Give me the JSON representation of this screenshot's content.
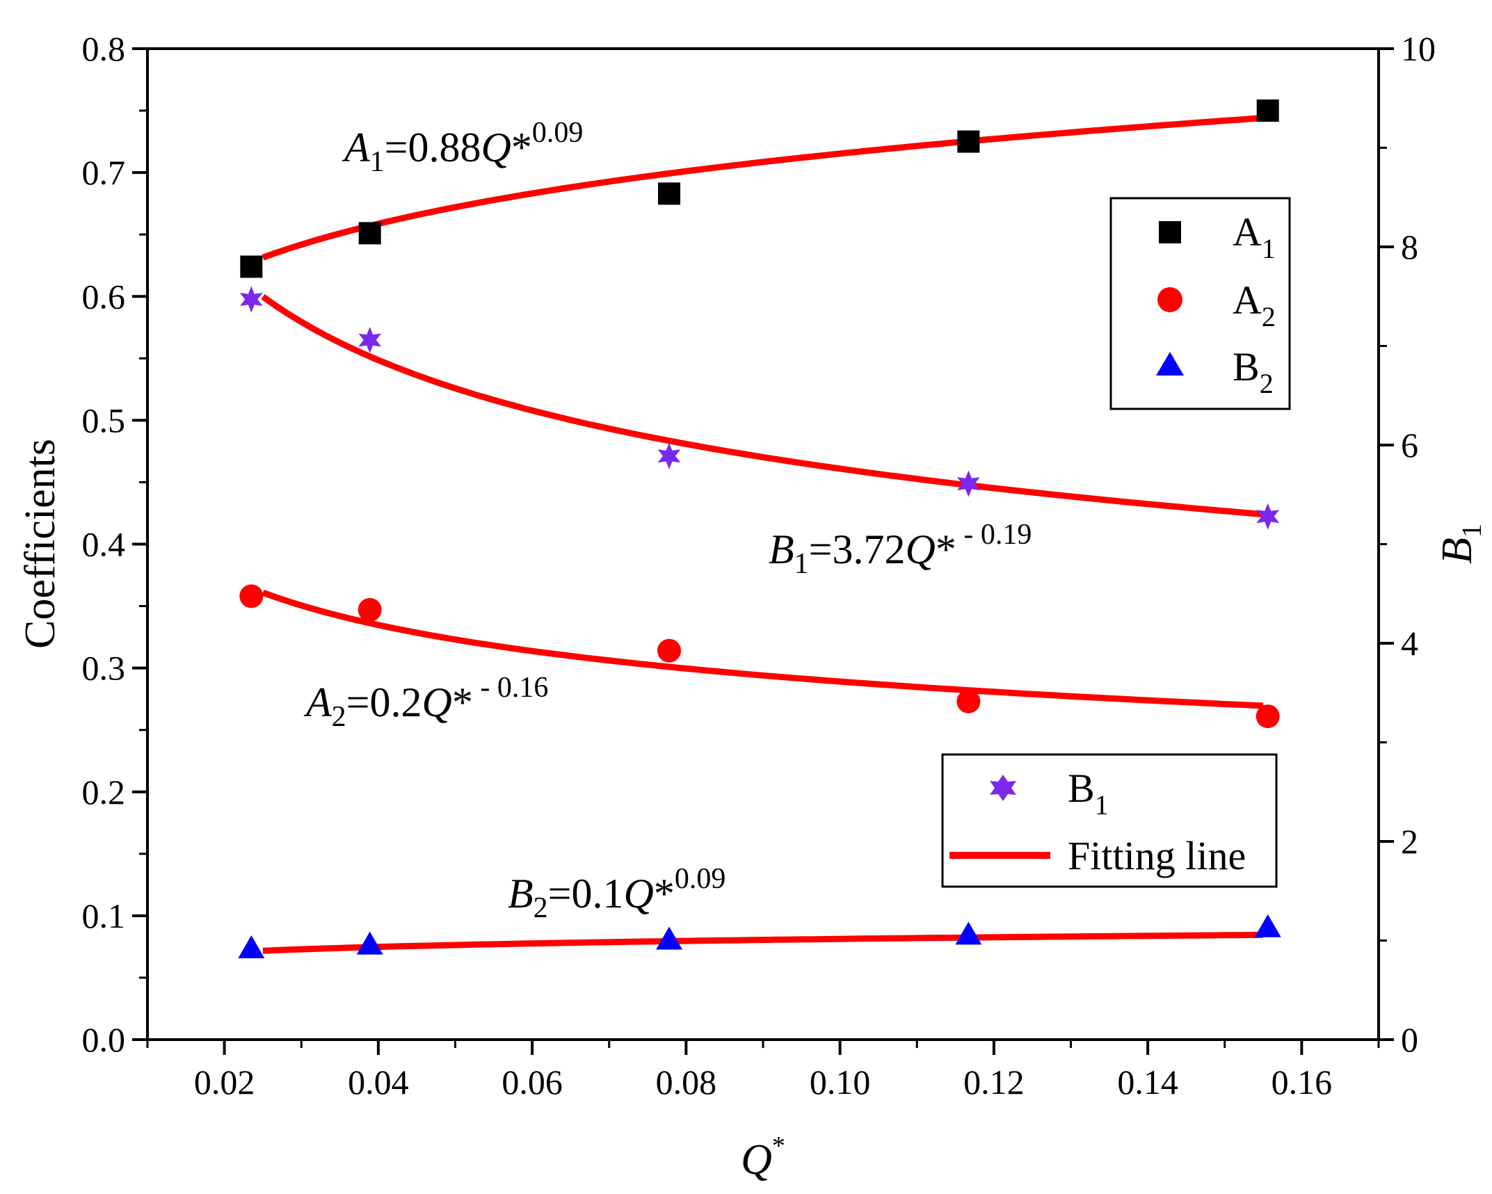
{
  "chart_data": {
    "type": "scatter",
    "xlabel": "Q",
    "xlabel_sup": "*",
    "ylabel_left": "Coefficients",
    "ylabel_right": "B",
    "ylabel_right_sub": "1",
    "xlim": [
      0.01,
      0.17
    ],
    "ylim_left": [
      0.0,
      0.8
    ],
    "ylim_right": [
      0,
      10
    ],
    "x_ticks": [
      "0.02",
      "0.04",
      "0.06",
      "0.08",
      "0.10",
      "0.12",
      "0.14",
      "0.16"
    ],
    "y_left_ticks": [
      "0.0",
      "0.1",
      "0.2",
      "0.3",
      "0.4",
      "0.5",
      "0.6",
      "0.7",
      "0.8"
    ],
    "y_right_ticks": [
      "0",
      "2",
      "4",
      "6",
      "8",
      "10"
    ],
    "grid": false,
    "series": [
      {
        "name": "A",
        "sub": "1",
        "marker": "square",
        "color": "#000000",
        "axis": "left",
        "x": [
          0.0235,
          0.0389,
          0.0778,
          0.1167,
          0.1556
        ],
        "values": [
          0.624,
          0.651,
          0.683,
          0.725,
          0.75
        ]
      },
      {
        "name": "A",
        "sub": "2",
        "marker": "circle",
        "color": "#ff0000",
        "axis": "left",
        "x": [
          0.0235,
          0.0389,
          0.0778,
          0.1167,
          0.1556
        ],
        "values": [
          0.358,
          0.347,
          0.314,
          0.273,
          0.261
        ]
      },
      {
        "name": "B",
        "sub": "2",
        "marker": "triangle",
        "color": "#0000ff",
        "axis": "left",
        "x": [
          0.0235,
          0.0389,
          0.0778,
          0.1167,
          0.1556
        ],
        "values": [
          0.073,
          0.076,
          0.08,
          0.084,
          0.09
        ]
      },
      {
        "name": "B",
        "sub": "1",
        "marker": "star",
        "color": "#7b28ee",
        "axis": "right",
        "x": [
          0.0235,
          0.0389,
          0.0778,
          0.1167,
          0.1556
        ],
        "values": [
          7.47,
          7.06,
          5.89,
          5.61,
          5.28
        ]
      }
    ],
    "fits": [
      {
        "var": "A",
        "sub": "1",
        "coef": "0.88",
        "exp": "0.09",
        "a": 0.88,
        "b": 0.09,
        "axis": "left",
        "x_range": [
          0.025,
          0.155
        ]
      },
      {
        "var": "A",
        "sub": "2",
        "coef": "0.2",
        "exp": " - 0.16",
        "a": 0.2,
        "b": -0.16,
        "axis": "left",
        "x_range": [
          0.025,
          0.155
        ]
      },
      {
        "var": "B",
        "sub": "2",
        "coef": "0.1",
        "exp": "0.09",
        "a": 0.1,
        "b": 0.09,
        "axis": "left",
        "x_range": [
          0.025,
          0.155
        ]
      },
      {
        "var": "B",
        "sub": "1",
        "coef": "3.72",
        "exp": " - 0.19",
        "a": 3.72,
        "b": -0.19,
        "axis": "right",
        "x_range": [
          0.025,
          0.155
        ]
      }
    ],
    "fit_color": "#ff0000",
    "fit_label": "Fitting line",
    "legend_position": "right"
  }
}
